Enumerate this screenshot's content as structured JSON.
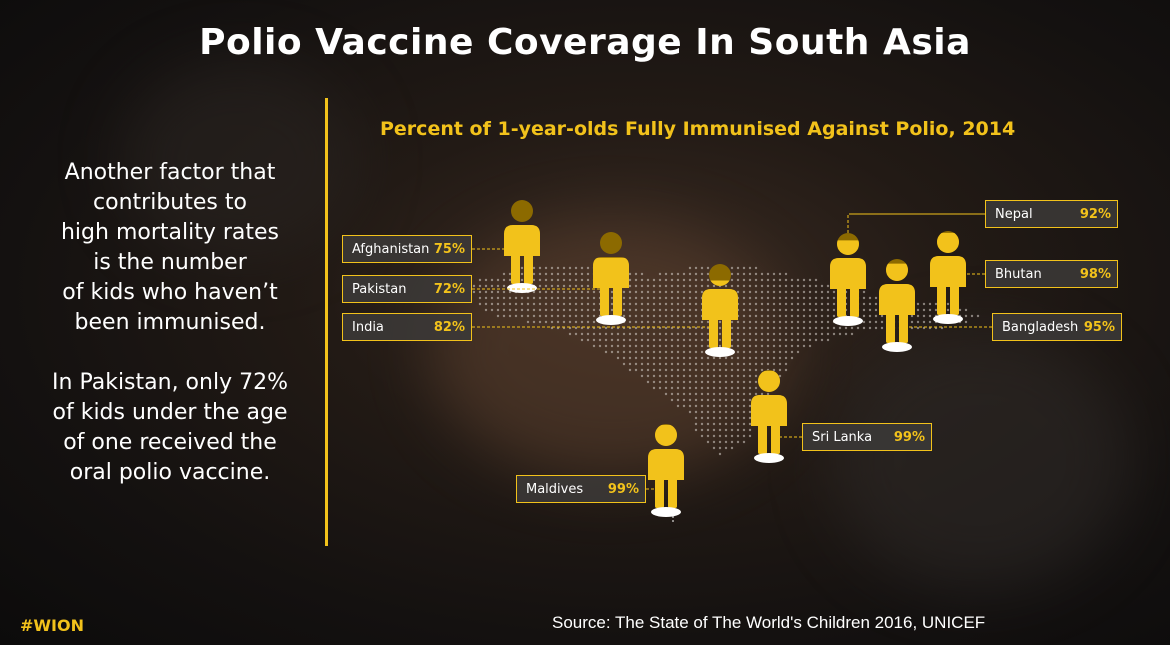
{
  "title": "Polio Vaccine Coverage In South Asia",
  "side_text": {
    "paragraph_1": [
      "Another factor that",
      "contributes to",
      "high mortality rates",
      "is the number",
      "of kids who haven’t",
      "been immunised."
    ],
    "paragraph_2": [
      "In Pakistan, only 72%",
      "of kids under the age",
      "of one received the",
      "oral polio vaccine."
    ]
  },
  "chart_data": {
    "type": "pictograph",
    "title": "Percent of 1-year-olds Fully Immunised Against Polio, 2014",
    "unit": "%",
    "categories": [
      "Afghanistan",
      "Pakistan",
      "India",
      "Nepal",
      "Bhutan",
      "Bangladesh",
      "Sri Lanka",
      "Maldives"
    ],
    "values": [
      75,
      72,
      82,
      92,
      98,
      95,
      99,
      99
    ],
    "labels": [
      "75%",
      "72%",
      "82%",
      "92%",
      "98%",
      "95%",
      "99%",
      "99%"
    ]
  },
  "colors": {
    "accent": "#f2c21b",
    "figure_dark": "#8c6a00",
    "background": "#1a1512"
  },
  "hashtag": "#WION",
  "source": "Source: The State of The World's Children 2016, UNICEF"
}
